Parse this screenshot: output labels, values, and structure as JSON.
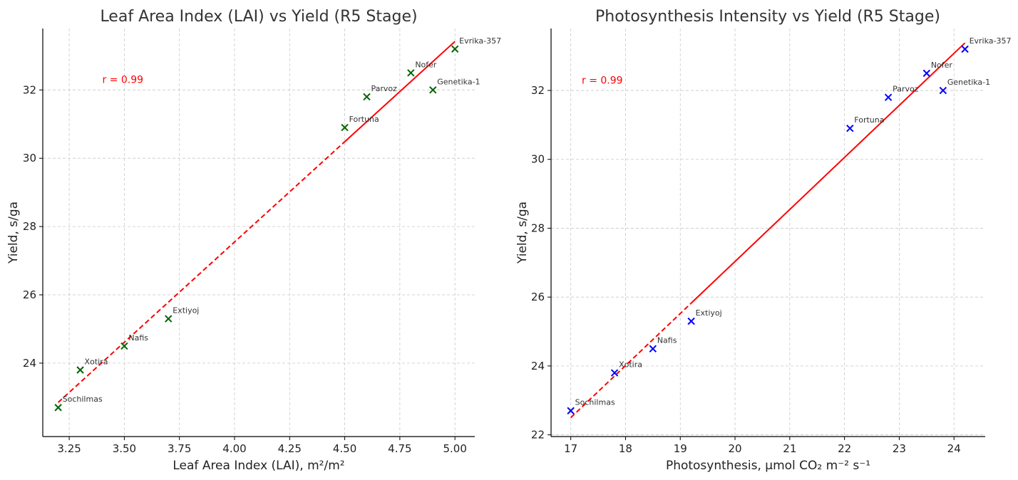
{
  "chart_data": [
    {
      "type": "scatter",
      "title": "Leaf Area Index (LAI) vs Yield (R5 Stage)",
      "xlabel": "Leaf Area Index (LAI), m²/m²",
      "ylabel": "Yield, s/ga",
      "xlim": [
        3.13,
        5.09
      ],
      "ylim": [
        21.85,
        33.8
      ],
      "xticks": [
        3.25,
        3.5,
        3.75,
        4.0,
        4.25,
        4.5,
        4.75,
        5.0
      ],
      "xtick_labels": [
        "3.25",
        "3.50",
        "3.75",
        "4.00",
        "4.25",
        "4.50",
        "4.75",
        "5.00"
      ],
      "yticks": [
        24,
        26,
        28,
        30,
        32
      ],
      "ytick_labels": [
        "24",
        "26",
        "28",
        "30",
        "32"
      ],
      "grid": true,
      "marker_color": "#006400",
      "fit_color": "#ff0000",
      "annotation": "r = 0.99",
      "annotation_anchor": [
        3.4,
        32.2
      ],
      "fit_line": {
        "x1": 3.2,
        "y1": 22.85,
        "x2": 5.0,
        "y2": 33.42,
        "split_x": 4.5
      },
      "points": [
        {
          "label": "Sochilmas",
          "x": 3.2,
          "y": 22.7
        },
        {
          "label": "Xotira",
          "x": 3.3,
          "y": 23.8
        },
        {
          "label": "Nafis",
          "x": 3.5,
          "y": 24.5
        },
        {
          "label": "Extiyoj",
          "x": 3.7,
          "y": 25.3
        },
        {
          "label": "Fortuna",
          "x": 4.5,
          "y": 30.9
        },
        {
          "label": "Parvoz",
          "x": 4.6,
          "y": 31.8
        },
        {
          "label": "Nofer",
          "x": 4.8,
          "y": 32.5
        },
        {
          "label": "Genetika-1",
          "x": 4.9,
          "y": 32.0
        },
        {
          "label": "Evrika-357",
          "x": 5.0,
          "y": 33.2
        }
      ]
    },
    {
      "type": "scatter",
      "title": "Photosynthesis Intensity vs Yield (R5 Stage)",
      "xlabel": "Photosynthesis, μmol CO₂ m⁻² s⁻¹",
      "ylabel": "Yield, s/ga",
      "xlim": [
        16.64,
        24.57
      ],
      "ylim": [
        21.95,
        33.8
      ],
      "xticks": [
        17,
        18,
        19,
        20,
        21,
        22,
        23,
        24
      ],
      "xtick_labels": [
        "17",
        "18",
        "19",
        "20",
        "21",
        "22",
        "23",
        "24"
      ],
      "yticks": [
        22,
        24,
        26,
        28,
        30,
        32
      ],
      "ytick_labels": [
        "22",
        "24",
        "26",
        "28",
        "30",
        "32"
      ],
      "grid": true,
      "marker_color": "#0000ff",
      "fit_color": "#ff0000",
      "annotation": "r = 0.99",
      "annotation_anchor": [
        17.2,
        32.2
      ],
      "fit_line": {
        "x1": 17.0,
        "y1": 22.5,
        "x2": 24.2,
        "y2": 33.38,
        "split_x": 19.2
      },
      "points": [
        {
          "label": "Sochilmas",
          "x": 17.0,
          "y": 22.7
        },
        {
          "label": "Xotira",
          "x": 17.8,
          "y": 23.8
        },
        {
          "label": "Nafis",
          "x": 18.5,
          "y": 24.5
        },
        {
          "label": "Extiyoj",
          "x": 19.2,
          "y": 25.3
        },
        {
          "label": "Fortuna",
          "x": 22.1,
          "y": 30.9
        },
        {
          "label": "Parvoz",
          "x": 22.8,
          "y": 31.8
        },
        {
          "label": "Nofer",
          "x": 23.5,
          "y": 32.5
        },
        {
          "label": "Genetika-1",
          "x": 23.8,
          "y": 32.0
        },
        {
          "label": "Evrika-357",
          "x": 24.2,
          "y": 33.2
        }
      ]
    }
  ]
}
